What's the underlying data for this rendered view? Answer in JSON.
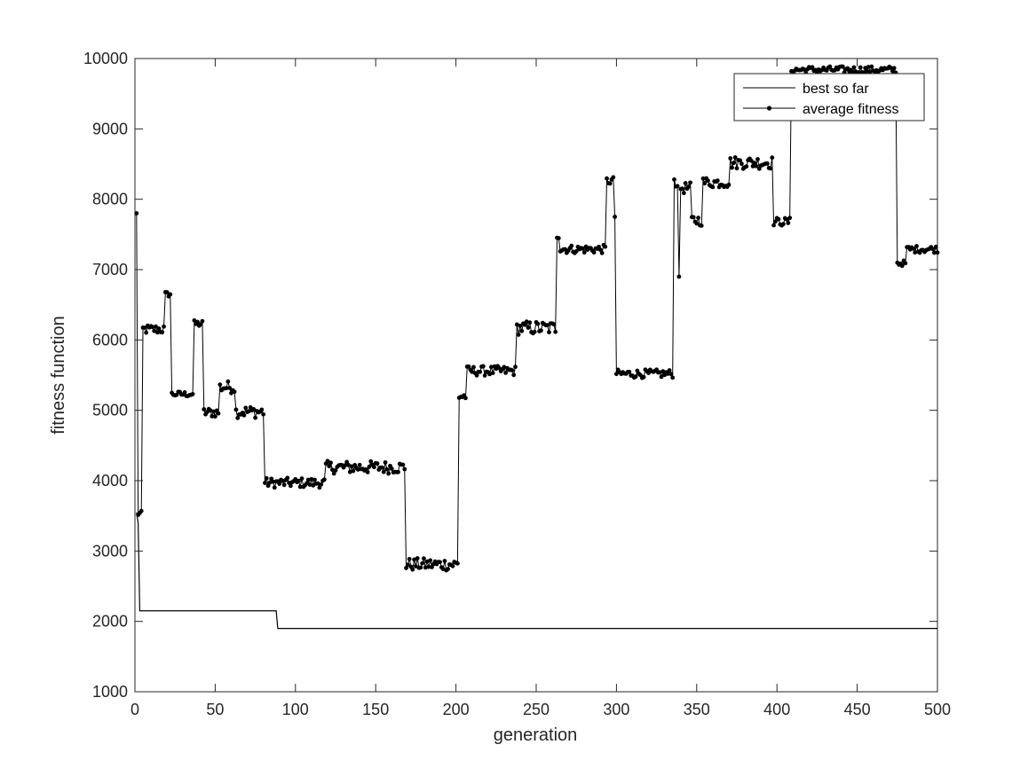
{
  "chart_data": {
    "type": "line",
    "xlabel": "generation",
    "ylabel": "fitness function",
    "xlim": [
      0,
      500
    ],
    "ylim": [
      1000,
      10000
    ],
    "xticks": [
      0,
      50,
      100,
      150,
      200,
      250,
      300,
      350,
      400,
      450,
      500
    ],
    "yticks": [
      1000,
      2000,
      3000,
      4000,
      5000,
      6000,
      7000,
      8000,
      9000,
      10000
    ],
    "grid": false,
    "legend_position": "top-right",
    "line_color": "#000000",
    "series": [
      {
        "name": "best so far",
        "style": "line",
        "x": [
          1,
          2,
          3,
          4,
          88,
          89,
          500
        ],
        "y": [
          3550,
          3400,
          2150,
          2150,
          2150,
          1900,
          1900
        ]
      },
      {
        "name": "average fitness",
        "style": "line-dots",
        "segments": [
          {
            "x0": 1,
            "x1": 1,
            "level": 7800,
            "spread": 0
          },
          {
            "x0": 2,
            "x1": 4,
            "level": 3530,
            "spread": 40
          },
          {
            "x0": 5,
            "x1": 18,
            "level": 6150,
            "spread": 70
          },
          {
            "x0": 19,
            "x1": 22,
            "level": 6650,
            "spread": 40
          },
          {
            "x0": 23,
            "x1": 36,
            "level": 5230,
            "spread": 40
          },
          {
            "x0": 37,
            "x1": 42,
            "level": 6230,
            "spread": 50
          },
          {
            "x0": 43,
            "x1": 52,
            "level": 4970,
            "spread": 70
          },
          {
            "x0": 53,
            "x1": 62,
            "level": 5330,
            "spread": 90
          },
          {
            "x0": 63,
            "x1": 80,
            "level": 4980,
            "spread": 90
          },
          {
            "x0": 81,
            "x1": 118,
            "level": 3970,
            "spread": 70
          },
          {
            "x0": 119,
            "x1": 168,
            "level": 4190,
            "spread": 90
          },
          {
            "x0": 169,
            "x1": 201,
            "level": 2810,
            "spread": 90
          },
          {
            "x0": 202,
            "x1": 206,
            "level": 5200,
            "spread": 70
          },
          {
            "x0": 207,
            "x1": 237,
            "level": 5560,
            "spread": 70
          },
          {
            "x0": 238,
            "x1": 262,
            "level": 6170,
            "spread": 100
          },
          {
            "x0": 263,
            "x1": 264,
            "level": 7480,
            "spread": 40
          },
          {
            "x0": 265,
            "x1": 293,
            "level": 7290,
            "spread": 60
          },
          {
            "x0": 294,
            "x1": 298,
            "level": 8260,
            "spread": 60
          },
          {
            "x0": 299,
            "x1": 299,
            "level": 7750,
            "spread": 0
          },
          {
            "x0": 300,
            "x1": 335,
            "level": 5520,
            "spread": 60
          },
          {
            "x0": 336,
            "x1": 338,
            "level": 8250,
            "spread": 90
          },
          {
            "x0": 339,
            "x1": 339,
            "level": 6900,
            "spread": 0
          },
          {
            "x0": 340,
            "x1": 346,
            "level": 8160,
            "spread": 80
          },
          {
            "x0": 347,
            "x1": 353,
            "level": 7700,
            "spread": 80
          },
          {
            "x0": 354,
            "x1": 370,
            "level": 8240,
            "spread": 80
          },
          {
            "x0": 371,
            "x1": 397,
            "level": 8520,
            "spread": 90
          },
          {
            "x0": 398,
            "x1": 408,
            "level": 7680,
            "spread": 60
          },
          {
            "x0": 409,
            "x1": 474,
            "level": 9840,
            "spread": 50
          },
          {
            "x0": 475,
            "x1": 480,
            "level": 7090,
            "spread": 40
          },
          {
            "x0": 481,
            "x1": 500,
            "level": 7290,
            "spread": 50
          }
        ]
      }
    ]
  }
}
